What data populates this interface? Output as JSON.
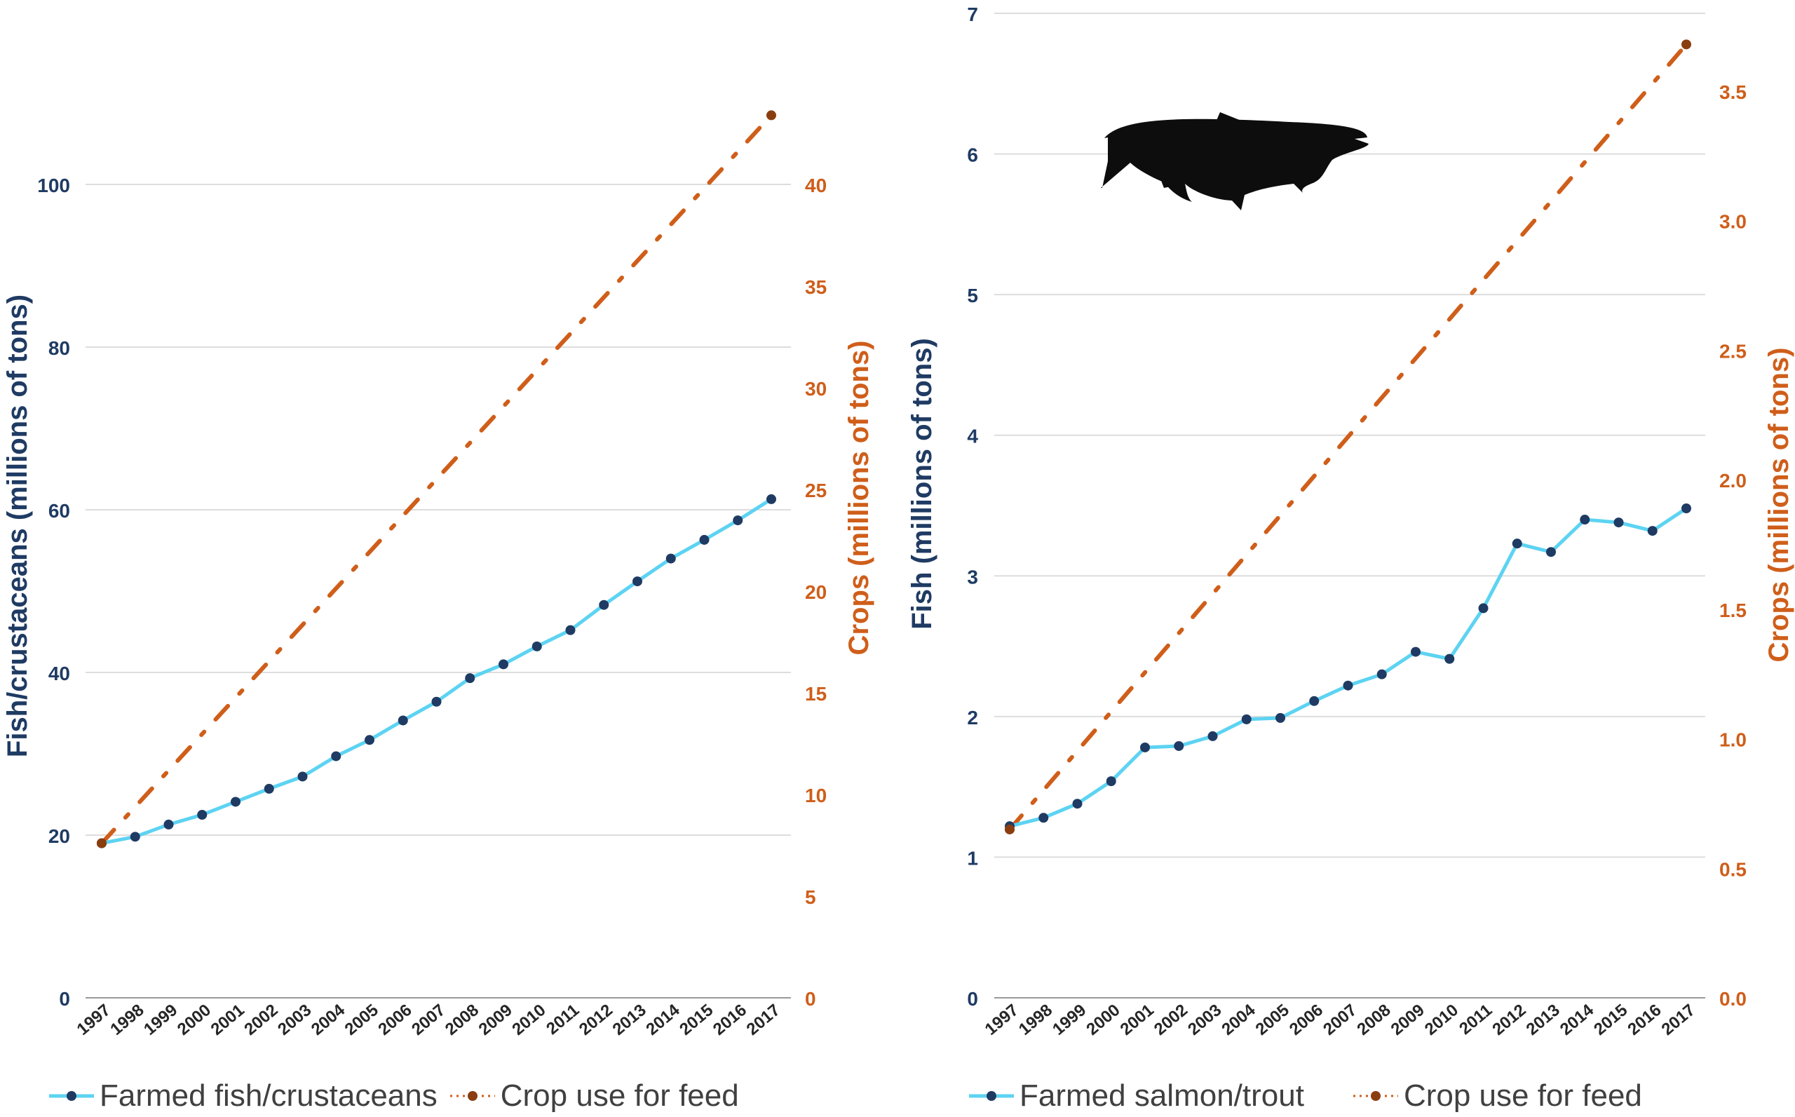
{
  "colors": {
    "fish_line": "#5dd3f2",
    "fish_marker": "#1f3b63",
    "crop_line": "#cf5e1a",
    "crop_marker": "#8a3e10",
    "left_axis_text": "#1f3b63",
    "right_axis_text": "#cf5e1a",
    "grid": "#dddddd",
    "year_text": "#262626"
  },
  "chart_data": [
    {
      "type": "line",
      "ylabel": "Fish/crustaceans (millions of tons)",
      "y2label": "Crops (millions of tons)",
      "categories": [
        "1997",
        "1998",
        "1999",
        "2000",
        "2001",
        "2002",
        "2003",
        "2004",
        "2005",
        "2006",
        "2007",
        "2008",
        "2009",
        "2010",
        "2011",
        "2012",
        "2013",
        "2014",
        "2015",
        "2016",
        "2017"
      ],
      "ylim": [
        0,
        110
      ],
      "yticks": [
        0,
        20,
        40,
        60,
        80,
        100
      ],
      "y2lim": [
        0,
        44
      ],
      "y2ticks": [
        0,
        5,
        10,
        15,
        20,
        25,
        30,
        35,
        40
      ],
      "series": [
        {
          "name": "Farmed fish/crustaceans",
          "axis": "left",
          "style": "solid",
          "values": [
            19.0,
            19.8,
            21.3,
            22.5,
            24.1,
            25.7,
            27.2,
            29.7,
            31.7,
            34.1,
            36.4,
            39.3,
            41.0,
            43.2,
            45.2,
            48.3,
            51.2,
            54.0,
            56.3,
            58.7,
            61.3
          ]
        },
        {
          "name": "Crop use for feed",
          "axis": "right",
          "style": "dash-dot",
          "values": [
            7.6,
            null,
            null,
            null,
            null,
            null,
            null,
            null,
            null,
            null,
            null,
            null,
            null,
            null,
            null,
            null,
            null,
            null,
            null,
            null,
            43.4
          ]
        }
      ],
      "legend": [
        "Farmed fish/crustaceans",
        "Crop use for feed"
      ]
    },
    {
      "type": "line",
      "ylabel": "Fish (millions of tons)",
      "y2label": "Crops (millions of tons)",
      "categories": [
        "1997",
        "1998",
        "1999",
        "2000",
        "2001",
        "2002",
        "2003",
        "2004",
        "2005",
        "2006",
        "2007",
        "2008",
        "2009",
        "2010",
        "2011",
        "2012",
        "2013",
        "2014",
        "2015",
        "2016",
        "2017"
      ],
      "ylim": [
        0,
        7
      ],
      "yticks": [
        0,
        1,
        2,
        3,
        4,
        5,
        6,
        7
      ],
      "y2lim": [
        0,
        3.8
      ],
      "y2ticks": [
        "0.0",
        "0.5",
        "1.0",
        "1.5",
        "2.0",
        "2.5",
        "3.0",
        "3.5"
      ],
      "series": [
        {
          "name": "Farmed salmon/trout",
          "axis": "left",
          "style": "solid",
          "values": [
            1.22,
            1.28,
            1.38,
            1.54,
            1.78,
            1.79,
            1.86,
            1.98,
            1.99,
            2.11,
            2.22,
            2.3,
            2.46,
            2.41,
            2.77,
            3.23,
            3.17,
            3.4,
            3.38,
            3.32,
            3.48
          ]
        },
        {
          "name": "Crop use for feed",
          "axis": "right",
          "style": "dash-dot",
          "values": [
            0.65,
            null,
            null,
            null,
            null,
            null,
            null,
            null,
            null,
            null,
            null,
            null,
            null,
            null,
            null,
            null,
            null,
            null,
            null,
            null,
            3.68
          ]
        }
      ],
      "legend": [
        "Farmed salmon/trout",
        "Crop use for feed"
      ],
      "annotation": "salmon silhouette"
    }
  ]
}
